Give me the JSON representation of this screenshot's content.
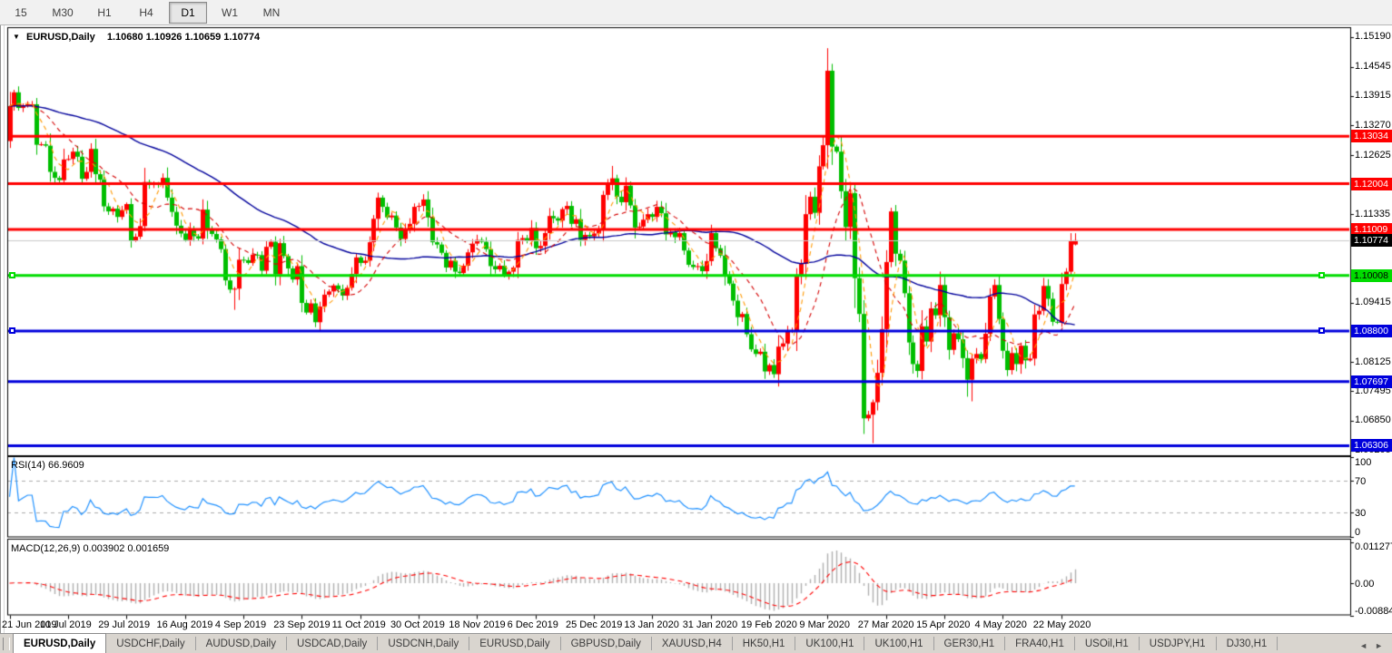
{
  "toolbar": {
    "timeframes": [
      "15",
      "M30",
      "H1",
      "H4",
      "D1",
      "W1",
      "MN"
    ],
    "active_timeframe": "D1"
  },
  "icons": {
    "dropdown": "▼",
    "tab_prev": "◄",
    "tab_next": "►"
  },
  "chart_header": {
    "symbol": "EURUSD,Daily",
    "quote": "1.10680 1.10926 1.10659 1.10774"
  },
  "rsi_header": {
    "label": "RSI(14)",
    "value": "66.9609"
  },
  "macd_header": {
    "label": "MACD(12,26,9)",
    "value": "0.003902 0.001659"
  },
  "colors": {
    "bull": "#FF0000",
    "bear": "#00BE00",
    "ma_fast": "#FF9900",
    "ma_mid": "#D40000",
    "ma_slow": "#00009B",
    "rsi_line": "#1E90FF",
    "rsi_level": "#ABABAB",
    "macd_bar": "#AFAFAF",
    "macd_signal": "#FF0000",
    "bid_line": "#C8C8C8",
    "bid_label_bg": "#000000"
  },
  "chart_data": {
    "type": "candlestick",
    "symbol": "EURUSD",
    "timeframe": "Daily",
    "color_convention": "red = bullish, green = bearish",
    "last_candle": {
      "open": 1.1068,
      "high": 1.10926,
      "low": 1.10659,
      "close": 1.10774
    },
    "first_open": 1.1293,
    "closes": [
      1.1369,
      1.1399,
      1.1365,
      1.1369,
      1.1373,
      1.1373,
      1.1285,
      1.1286,
      1.1283,
      1.1226,
      1.1213,
      1.1208,
      1.1253,
      1.1254,
      1.127,
      1.1259,
      1.1211,
      1.1226,
      1.1276,
      1.1221,
      1.1209,
      1.1151,
      1.114,
      1.1146,
      1.1128,
      1.1143,
      1.1156,
      1.1077,
      1.1085,
      1.1108,
      1.1204,
      1.12,
      1.12,
      1.1199,
      1.1213,
      1.117,
      1.1139,
      1.1109,
      1.1092,
      1.1078,
      1.11,
      1.1086,
      1.1081,
      1.1144,
      1.1102,
      1.1091,
      1.1079,
      1.1058,
      1.099,
      1.097,
      1.0972,
      1.1035,
      1.1034,
      1.1028,
      1.1046,
      1.1045,
      1.1011,
      1.1063,
      1.1074,
      1.1003,
      1.1071,
      1.1043,
      1.1016,
      1.0992,
      1.1021,
      1.0941,
      1.092,
      1.094,
      1.0899,
      1.0933,
      1.0959,
      1.0966,
      1.0979,
      1.0971,
      1.0957,
      1.0974,
      1.1004,
      1.104,
      1.1028,
      1.1033,
      1.1073,
      1.1124,
      1.117,
      1.115,
      1.1127,
      1.1131,
      1.1105,
      1.108,
      1.1099,
      1.1113,
      1.115,
      1.1152,
      1.1166,
      1.1127,
      1.1073,
      1.1068,
      1.105,
      1.1018,
      1.1033,
      1.1009,
      1.1006,
      1.1022,
      1.1051,
      1.107,
      1.1078,
      1.1074,
      1.1058,
      1.1021,
      1.1014,
      1.1022,
      1.1001,
      1.1009,
      1.1018,
      1.1078,
      1.1082,
      1.1077,
      1.1104,
      1.106,
      1.1065,
      1.1093,
      1.113,
      1.1125,
      1.112,
      1.1145,
      1.1152,
      1.1113,
      1.1123,
      1.1078,
      1.1089,
      1.1086,
      1.1092,
      1.1099,
      1.1176,
      1.1199,
      1.1212,
      1.1172,
      1.116,
      1.1196,
      1.1153,
      1.1105,
      1.1107,
      1.1122,
      1.1134,
      1.1128,
      1.115,
      1.1136,
      1.109,
      1.1095,
      1.1084,
      1.1093,
      1.1055,
      1.1024,
      1.1019,
      1.1021,
      1.101,
      1.1032,
      1.1093,
      1.106,
      1.1044,
      1.1,
      1.0983,
      1.0946,
      1.091,
      1.0917,
      1.0873,
      1.084,
      1.083,
      1.0835,
      1.0792,
      1.0806,
      1.0786,
      1.0846,
      1.0853,
      1.088,
      1.088,
      1.0999,
      1.1026,
      1.1134,
      1.1172,
      1.1137,
      1.1238,
      1.1284,
      1.1446,
      1.1281,
      1.127,
      1.1184,
      1.1106,
      1.118,
      1.0995,
      1.0917,
      1.069,
      1.0698,
      1.0725,
      1.0789,
      1.0884,
      1.103,
      1.114,
      1.1048,
      1.1033,
      1.0962,
      1.0855,
      1.0808,
      1.0793,
      1.089,
      1.0857,
      1.0929,
      1.0914,
      1.098,
      1.091,
      1.0839,
      1.0875,
      1.0862,
      1.0821,
      1.0774,
      1.082,
      1.083,
      1.0819,
      1.0874,
      1.0955,
      1.098,
      1.0906,
      1.0837,
      1.0795,
      1.0832,
      1.0808,
      1.0848,
      1.0816,
      1.082,
      1.0916,
      1.0924,
      1.0978,
      1.095,
      1.09,
      1.0898,
      1.0982,
      1.1009,
      1.1076,
      1.10774
    ],
    "extremes": {
      "2": {
        "h": 1.1412
      },
      "50": {
        "l": 1.0926
      },
      "69": {
        "l": 1.0879
      },
      "134": {
        "h": 1.1239
      },
      "170": {
        "l": 1.0778
      },
      "182": {
        "h": 1.1495
      },
      "190": {
        "l": 1.0656
      },
      "192": {
        "l": 1.0636
      },
      "196": {
        "h": 1.1148
      },
      "213": {
        "l": 1.0737
      },
      "214": {
        "l": 1.0727
      }
    },
    "x_labels": [
      "21 Jun 2019",
      "10 Jul 2019",
      "29 Jul 2019",
      "16 Aug 2019",
      "4 Sep 2019",
      "23 Sep 2019",
      "11 Oct 2019",
      "30 Oct 2019",
      "18 Nov 2019",
      "6 Dec 2019",
      "25 Dec 2019",
      "13 Jan 2020",
      "31 Jan 2020",
      "19 Feb 2020",
      "9 Mar 2020",
      "27 Mar 2020",
      "15 Apr 2020",
      "4 May 2020",
      "22 May 2020"
    ],
    "price_axis_ticks": [
      "1.15190",
      "1.14545",
      "1.13915",
      "1.13270",
      "1.12625",
      "1.11335",
      "1.09415",
      "1.08125",
      "1.07495",
      "1.06850",
      "1.06205"
    ],
    "levels": [
      {
        "label": "1.13034",
        "price": 1.13034,
        "color": "#FF0000",
        "text": "#FFFFFF",
        "handles": false
      },
      {
        "label": "1.12004",
        "price": 1.12004,
        "color": "#FF0000",
        "text": "#FFFFFF",
        "handles": false
      },
      {
        "label": "1.11009",
        "price": 1.11009,
        "color": "#FF0000",
        "text": "#FFFFFF",
        "handles": false
      },
      {
        "label": "1.10008",
        "price": 1.10008,
        "color": "#00DC00",
        "text": "#000000",
        "handles": true
      },
      {
        "label": "1.08800",
        "price": 1.088,
        "color": "#0000DC",
        "text": "#FFFFFF",
        "handles": true
      },
      {
        "label": "1.07697",
        "price": 1.07697,
        "color": "#0000DC",
        "text": "#FFFFFF",
        "handles": false
      },
      {
        "label": "1.06306",
        "price": 1.06306,
        "color": "#0000DC",
        "text": "#FFFFFF",
        "handles": false
      }
    ],
    "current_price": {
      "label": "1.10774",
      "price": 1.10774
    },
    "indicators": {
      "rsi": {
        "label": "RSI(14)",
        "value": "66.9609",
        "levels": [
          70,
          30
        ],
        "axis": [
          "100",
          "70",
          "30",
          "0"
        ]
      },
      "macd": {
        "label": "MACD(12,26,9)",
        "main": "0.003902",
        "signal": "0.001659",
        "axis": [
          "0.011277",
          "0.00",
          "-0.008845"
        ]
      }
    }
  },
  "tabs": [
    {
      "label": "EURUSD,Daily",
      "active": true
    },
    {
      "label": "USDCHF,Daily",
      "active": false
    },
    {
      "label": "AUDUSD,Daily",
      "active": false
    },
    {
      "label": "USDCAD,Daily",
      "active": false
    },
    {
      "label": "USDCNH,Daily",
      "active": false
    },
    {
      "label": "EURUSD,Daily",
      "active": false
    },
    {
      "label": "GBPUSD,Daily",
      "active": false
    },
    {
      "label": "XAUUSD,H4",
      "active": false
    },
    {
      "label": "HK50,H1",
      "active": false
    },
    {
      "label": "UK100,H1",
      "active": false
    },
    {
      "label": "UK100,H1",
      "active": false
    },
    {
      "label": "GER30,H1",
      "active": false
    },
    {
      "label": "FRA40,H1",
      "active": false
    },
    {
      "label": "USOil,H1",
      "active": false
    },
    {
      "label": "USDJPY,H1",
      "active": false
    },
    {
      "label": "DJ30,H1",
      "active": false
    }
  ]
}
